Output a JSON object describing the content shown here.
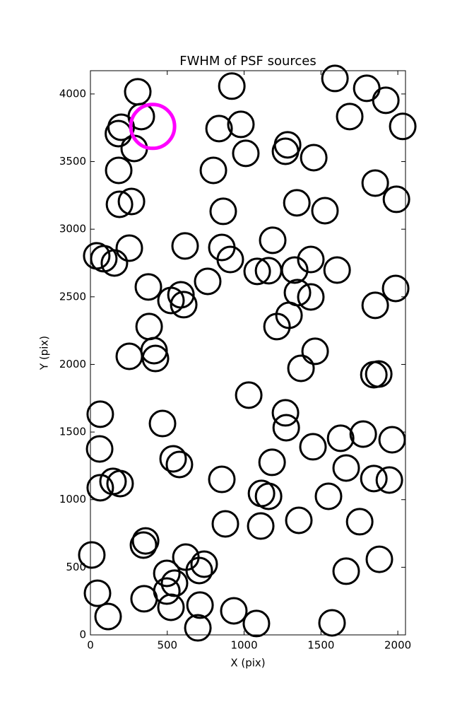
{
  "chart_data": {
    "type": "scatter",
    "title": "FWHM of PSF sources",
    "x_label": "X (pix)",
    "y_label": "Y (pix)",
    "xlim": [
      0,
      2050
    ],
    "ylim": [
      0,
      4172
    ],
    "xticks": [
      0,
      500,
      1000,
      1500,
      2000
    ],
    "yticks": [
      0,
      500,
      1000,
      1500,
      2000,
      2500,
      3000,
      3500,
      4000
    ],
    "grid": false,
    "series": [
      {
        "color": "#000000",
        "x": [
          308,
          331,
          200,
          182,
          285,
          184,
          267,
          189,
          920,
          979,
          837,
          1011,
          800,
          864,
          1283,
          1269,
          1453,
          1591,
          1798,
          1922,
          1687,
          2032,
          1853,
          1991,
          1343,
          1526,
          1186,
          41,
          87,
          156,
          253,
          616,
          855,
          910,
          1085,
          1159,
          763,
          1329,
          1434,
          1605,
          377,
          589,
          524,
          607,
          1347,
          1434,
          1986,
          1853,
          1292,
          1214,
          382,
          414,
          423,
          253,
          1462,
          1370,
          1844,
          1876,
          1030,
          64,
          60,
          469,
          1269,
          1274,
          1448,
          1628,
          1775,
          1963,
          538,
          579,
          1182,
          1664,
          147,
          193,
          64,
          855,
          1844,
          1945,
          1113,
          1159,
          1549,
          878,
          1108,
          1356,
          1752,
          359,
          345,
          9,
          621,
          1880,
          740,
          708,
          497,
          547,
          497,
          1664,
          46,
          349,
          524,
          713,
          933,
          115,
          699,
          1080,
          1572
        ],
        "y": [
          4016,
          3833,
          3754,
          3707,
          3597,
          3435,
          3205,
          3184,
          4058,
          3775,
          3744,
          3561,
          3435,
          3132,
          3624,
          3576,
          3529,
          4115,
          4042,
          3953,
          3833,
          3760,
          3341,
          3221,
          3195,
          3137,
          2918,
          2803,
          2782,
          2750,
          2860,
          2876,
          2865,
          2776,
          2688,
          2693,
          2614,
          2698,
          2776,
          2698,
          2573,
          2515,
          2473,
          2442,
          2531,
          2499,
          2562,
          2437,
          2363,
          2280,
          2280,
          2102,
          2044,
          2060,
          2097,
          1971,
          1924,
          1929,
          1773,
          1632,
          1375,
          1563,
          1642,
          1532,
          1391,
          1454,
          1485,
          1443,
          1302,
          1260,
          1276,
          1234,
          1135,
          1119,
          1088,
          1150,
          1156,
          1145,
          1046,
          1025,
          1025,
          821,
          805,
          847,
          837,
          695,
          664,
          591,
          575,
          559,
          523,
          476,
          455,
          382,
          324,
          471,
          308,
          267,
          204,
          220,
          178,
          136,
          52,
          84,
          89
        ]
      },
      {
        "color": "#ff00ff",
        "x": [
          405
        ],
        "y": [
          3760
        ]
      }
    ]
  }
}
